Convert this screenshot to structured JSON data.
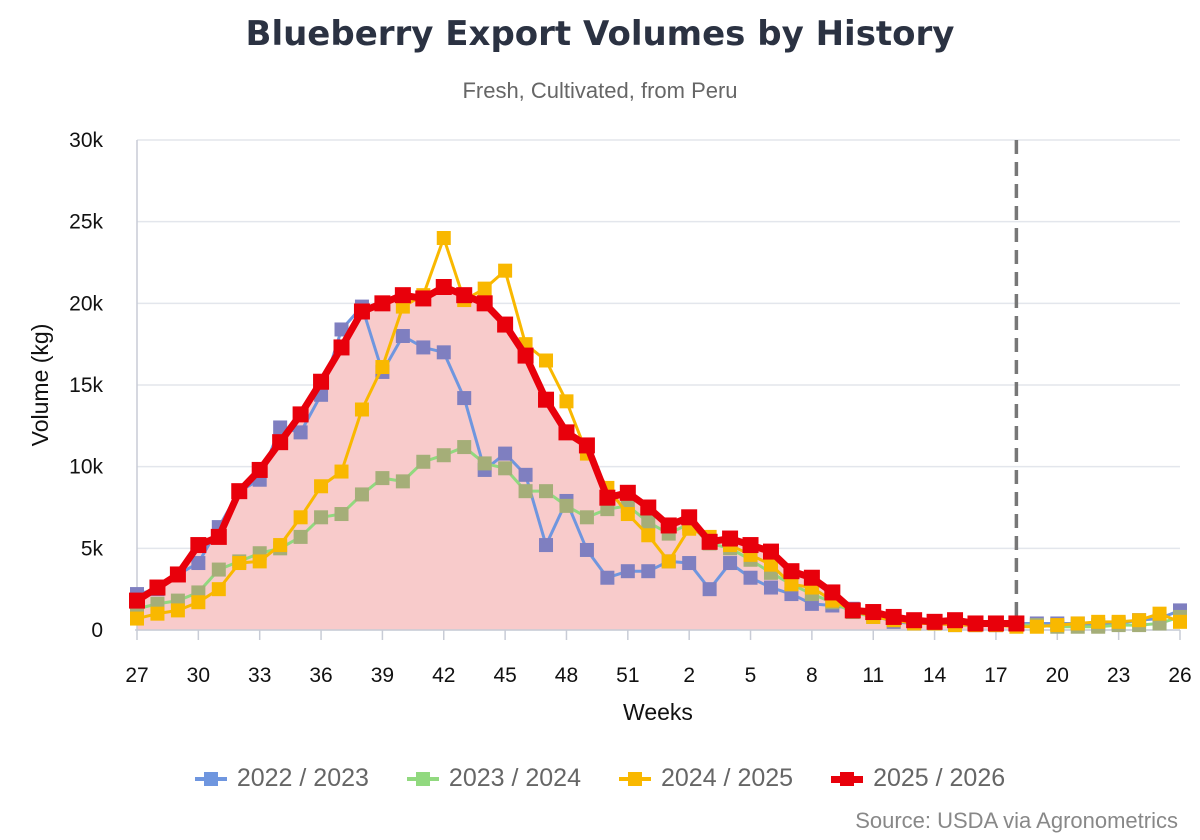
{
  "chart_data": {
    "type": "line",
    "title": "Blueberry Export Volumes by History",
    "subtitle": "Fresh, Cultivated, from Peru",
    "xlabel": "Weeks",
    "ylabel": "Volume (kg)",
    "ylim": [
      0,
      30000
    ],
    "y_ticks": [
      0,
      5000,
      10000,
      15000,
      20000,
      25000,
      30000
    ],
    "y_tick_labels": [
      "0",
      "5k",
      "10k",
      "15k",
      "20k",
      "25k",
      "30k"
    ],
    "x_tick_labels": [
      "27",
      "30",
      "33",
      "36",
      "39",
      "42",
      "45",
      "48",
      "51",
      "2",
      "5",
      "8",
      "11",
      "14",
      "17",
      "20",
      "23",
      "26"
    ],
    "grid": true,
    "legend_position": "bottom",
    "current_week_marker": "18",
    "weeks": [
      "27",
      "28",
      "29",
      "30",
      "31",
      "32",
      "33",
      "34",
      "35",
      "36",
      "37",
      "38",
      "39",
      "40",
      "41",
      "42",
      "43",
      "44",
      "45",
      "46",
      "47",
      "48",
      "49",
      "50",
      "51",
      "52",
      "1",
      "2",
      "3",
      "4",
      "5",
      "6",
      "7",
      "8",
      "9",
      "10",
      "11",
      "12",
      "13",
      "14",
      "15",
      "16",
      "17",
      "18",
      "19",
      "20",
      "21",
      "22",
      "23",
      "24",
      "25",
      "26"
    ],
    "series": [
      {
        "name": "2022 / 2023",
        "color": "#6f96df",
        "marker_color": "#7f7fc0",
        "line_width": 3,
        "values": [
          2200,
          2500,
          3400,
          4100,
          6300,
          8500,
          9200,
          12400,
          12100,
          14400,
          18400,
          19800,
          15800,
          18000,
          17300,
          17000,
          14200,
          9800,
          10800,
          9500,
          5200,
          7900,
          4900,
          3200,
          3600,
          3600,
          4200,
          4100,
          2500,
          4100,
          3200,
          2600,
          2200,
          1600,
          1500,
          1300,
          900,
          500,
          400,
          400,
          300,
          300,
          300,
          400,
          400,
          400,
          400,
          300,
          400,
          600,
          700,
          1200
        ]
      },
      {
        "name": "2023 / 2024",
        "color": "#91d97f",
        "marker_color": "#a5ae78",
        "line_width": 3,
        "values": [
          1300,
          1600,
          1800,
          2300,
          3700,
          4200,
          4700,
          5000,
          5700,
          6900,
          7100,
          8300,
          9300,
          9100,
          10300,
          10700,
          11200,
          10200,
          9900,
          8500,
          8500,
          7600,
          6900,
          7400,
          7600,
          6600,
          5900,
          6500,
          5300,
          5000,
          4300,
          3500,
          2800,
          2200,
          1700,
          1100,
          800,
          600,
          500,
          400,
          400,
          300,
          300,
          300,
          300,
          200,
          200,
          200,
          300,
          300,
          400,
          800
        ]
      },
      {
        "name": "2024 / 2025",
        "color": "#f9b800",
        "marker_color": "#f9b800",
        "line_width": 3,
        "values": [
          700,
          1000,
          1200,
          1700,
          2500,
          4100,
          4200,
          5200,
          6900,
          8800,
          9700,
          13500,
          16100,
          19800,
          20500,
          24000,
          20200,
          20900,
          22000,
          17500,
          16500,
          14000,
          10800,
          8700,
          7100,
          5800,
          4200,
          6200,
          5700,
          5200,
          4600,
          4000,
          2800,
          2600,
          1800,
          1200,
          800,
          600,
          400,
          400,
          300,
          300,
          300,
          200,
          200,
          300,
          400,
          500,
          500,
          600,
          1000,
          500
        ]
      },
      {
        "name": "2025 / 2026",
        "color": "#e8000b",
        "marker_color": "#e8000b",
        "line_width": 7,
        "values": [
          1800,
          2600,
          3400,
          5200,
          5700,
          8500,
          9800,
          11500,
          13200,
          15200,
          17300,
          19500,
          20000,
          20500,
          20300,
          21000,
          20500,
          20000,
          18700,
          16800,
          14100,
          12100,
          11300,
          8100,
          8400,
          7500,
          6400,
          6900,
          5400,
          5600,
          5200,
          4800,
          3600,
          3200,
          2300,
          1200,
          1100,
          800,
          600,
          500,
          600,
          400,
          400,
          400
        ]
      }
    ]
  },
  "legend": {
    "items": [
      "2022 / 2023",
      "2023 / 2024",
      "2024 / 2025",
      "2025 / 2026"
    ]
  },
  "source": "Source: USDA via Agronometrics"
}
